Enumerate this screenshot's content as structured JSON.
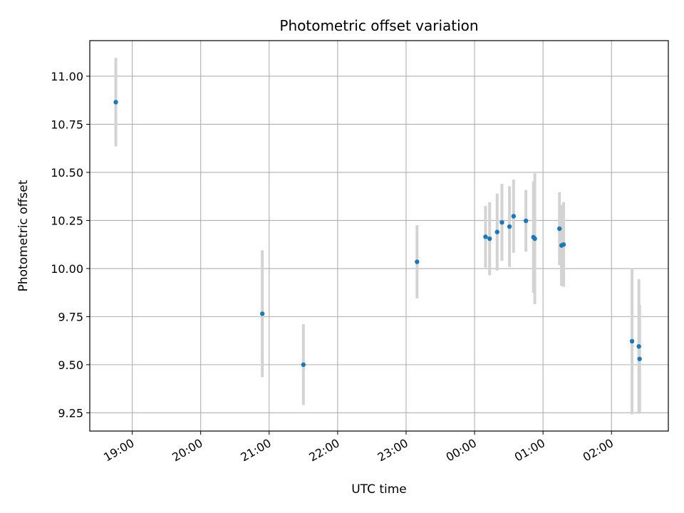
{
  "chart_data": {
    "type": "scatter",
    "title": "Photometric offset variation",
    "xlabel": "UTC time",
    "ylabel": "Photometric offset",
    "x_unit": "hours since 18:00 UTC",
    "xlim": [
      0.38,
      8.83
    ],
    "ylim": [
      9.155,
      11.185
    ],
    "xticks": [
      {
        "value": 1,
        "label": "19:00"
      },
      {
        "value": 2,
        "label": "20:00"
      },
      {
        "value": 3,
        "label": "21:00"
      },
      {
        "value": 4,
        "label": "22:00"
      },
      {
        "value": 5,
        "label": "23:00"
      },
      {
        "value": 6,
        "label": "00:00"
      },
      {
        "value": 7,
        "label": "01:00"
      },
      {
        "value": 8,
        "label": "02:00"
      }
    ],
    "yticks": [
      {
        "value": 9.25,
        "label": "9.25"
      },
      {
        "value": 9.5,
        "label": "9.50"
      },
      {
        "value": 9.75,
        "label": "9.75"
      },
      {
        "value": 10.0,
        "label": "10.00"
      },
      {
        "value": 10.25,
        "label": "10.25"
      },
      {
        "value": 10.5,
        "label": "10.50"
      },
      {
        "value": 10.75,
        "label": "10.75"
      },
      {
        "value": 11.0,
        "label": "11.00"
      }
    ],
    "grid": true,
    "colors": {
      "point": "#1f77b4",
      "errorbar": "#d3d3d3",
      "grid": "#b0b0b0"
    },
    "series": [
      {
        "name": "offset",
        "points": [
          {
            "x": 0.76,
            "y": 10.865,
            "err": 0.23
          },
          {
            "x": 2.9,
            "y": 9.765,
            "err": 0.33
          },
          {
            "x": 3.5,
            "y": 9.5,
            "err": 0.21
          },
          {
            "x": 5.16,
            "y": 10.035,
            "err": 0.19
          },
          {
            "x": 6.16,
            "y": 10.165,
            "err": 0.16
          },
          {
            "x": 6.22,
            "y": 10.155,
            "err": 0.19
          },
          {
            "x": 6.33,
            "y": 10.19,
            "err": 0.2
          },
          {
            "x": 6.4,
            "y": 10.24,
            "err": 0.2
          },
          {
            "x": 6.51,
            "y": 10.218,
            "err": 0.21
          },
          {
            "x": 6.57,
            "y": 10.272,
            "err": 0.19
          },
          {
            "x": 6.75,
            "y": 10.248,
            "err": 0.16
          },
          {
            "x": 6.86,
            "y": 10.163,
            "err": 0.29
          },
          {
            "x": 6.88,
            "y": 10.155,
            "err": 0.34
          },
          {
            "x": 7.24,
            "y": 10.207,
            "err": 0.19
          },
          {
            "x": 7.27,
            "y": 10.12,
            "err": 0.21
          },
          {
            "x": 7.3,
            "y": 10.125,
            "err": 0.22
          },
          {
            "x": 8.3,
            "y": 9.622,
            "err": 0.38
          },
          {
            "x": 8.4,
            "y": 9.595,
            "err": 0.35
          },
          {
            "x": 8.41,
            "y": 9.53,
            "err": 0.28
          }
        ]
      }
    ]
  }
}
